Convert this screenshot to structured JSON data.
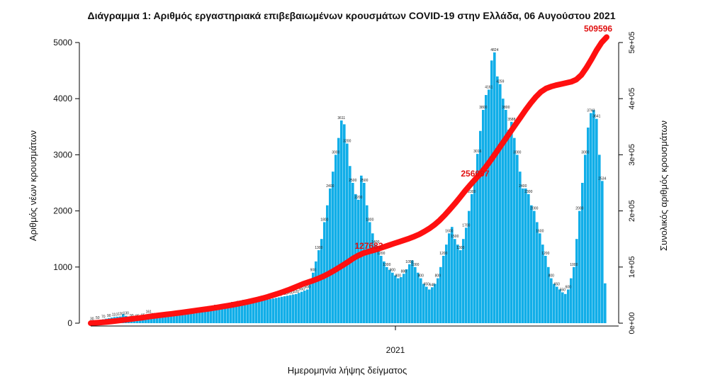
{
  "chart_data": {
    "type": "bar",
    "title": "Διάγραμμα 1: Αριθμός εργαστηριακά επιβεβαιωμένων κρουσμάτων COVID-19 στην Ελλάδα, 06 Αυγούστου 2021",
    "xlabel": "Ημερομηνία λήψης δείγματος",
    "ylabel": "Αριθμός νέων κρουσμάτων",
    "y2label": "Συνολικός αριθμός κρουσμάτων",
    "ylim": [
      0,
      5000
    ],
    "yticks": [
      "0",
      "1000",
      "2000",
      "3000",
      "4000",
      "5000"
    ],
    "y2lim": [
      0,
      500000
    ],
    "y2ticks": [
      "0e+00",
      "1e+05",
      "2e+05",
      "3e+05",
      "4e+05",
      "5e+05"
    ],
    "xtick": "2021",
    "bar_color": "#11aee8",
    "line_color": "#ff1010",
    "annotation_color": "#e01010",
    "series": [
      {
        "type": "bar",
        "label_every": 2,
        "values": [
          30,
          40,
          50,
          60,
          70,
          80,
          90,
          100,
          110,
          115,
          120,
          160,
          130,
          110,
          90,
          80,
          85,
          90,
          95,
          100,
          161,
          120,
          110,
          100,
          110,
          115,
          120,
          125,
          130,
          135,
          140,
          145,
          150,
          155,
          160,
          165,
          170,
          180,
          190,
          200,
          210,
          220,
          230,
          240,
          250,
          255,
          260,
          270,
          280,
          290,
          300,
          310,
          320,
          330,
          340,
          350,
          360,
          370,
          380,
          390,
          400,
          410,
          420,
          430,
          440,
          450,
          460,
          470,
          480,
          490,
          500,
          510,
          520,
          540,
          560,
          580,
          600,
          700,
          900,
          1100,
          1300,
          1500,
          1800,
          2100,
          2400,
          2700,
          3000,
          3300,
          3611,
          3543,
          3200,
          2800,
          2500,
          2300,
          2200,
          2629,
          2500,
          2100,
          1800,
          1600,
          1400,
          1300,
          1200,
          1100,
          1000,
          950,
          900,
          850,
          800,
          820,
          880,
          960,
          1050,
          1118,
          1000,
          900,
          800,
          700,
          650,
          600,
          640,
          700,
          800,
          1000,
          1200,
          1400,
          1600,
          1715,
          1500,
          1400,
          1300,
          1500,
          1700,
          2000,
          2300,
          2600,
          3016,
          3425,
          3800,
          4065,
          4161,
          4680,
          4824,
          4396,
          4259,
          4000,
          3800,
          3448,
          3588,
          3300,
          3000,
          2700,
          2400,
          2400,
          2300,
          2100,
          2000,
          1800,
          1600,
          1400,
          1200,
          1000,
          800,
          700,
          650,
          600,
          550,
          520,
          600,
          800,
          1000,
          1500,
          2000,
          2500,
          3000,
          3485,
          3743,
          3797,
          3641,
          3000,
          2534,
          710
        ]
      },
      {
        "type": "line",
        "values": [
          0,
          600,
          1200,
          2000,
          3000,
          4000,
          5200,
          6300,
          7500,
          8600,
          9600,
          11000,
          12200,
          13400,
          14500,
          15600,
          16700,
          17800,
          19000,
          20200,
          21500,
          22800,
          24100,
          25300,
          26600,
          28000,
          29500,
          31000,
          32600,
          34300,
          36100,
          38000,
          40000,
          42200,
          44500,
          47000,
          49700,
          52600,
          55700,
          59000,
          62500,
          66200,
          70000,
          73000,
          76000,
          79500,
          83500,
          88000,
          93000,
          98500,
          104000,
          110000,
          116000,
          121000,
          125000,
          127682,
          130000,
          133000,
          136000,
          139000,
          142000,
          145000,
          148000,
          151000,
          154500,
          158500,
          163500,
          169000,
          175500,
          183500,
          192500,
          202500,
          213000,
          224000,
          235500,
          246000,
          256097,
          266000,
          277000,
          289000,
          302000,
          315000,
          328000,
          341000,
          354000,
          367000,
          380000,
          392000,
          403000,
          412000,
          418000,
          421500,
          424000,
          426000,
          428000,
          430000,
          434000,
          442000,
          455000,
          470000,
          486000,
          500000,
          509596
        ]
      }
    ],
    "bar_labels": [
      "3611",
      "3543",
      "3016",
      "3425",
      "4065",
      "4161",
      "4680",
      "4824",
      "4396",
      "4259",
      "3448",
      "3588",
      "3485",
      "3743",
      "3797",
      "3641",
      "2534",
      "710",
      "2629",
      "1715",
      "1118",
      "161",
      "160"
    ],
    "cumulative_labels": [
      {
        "text": "127682",
        "index": 55
      },
      {
        "text": "256097",
        "index": 76
      },
      {
        "text": "509596",
        "index": 102
      }
    ],
    "grid": false,
    "legend": "none"
  }
}
